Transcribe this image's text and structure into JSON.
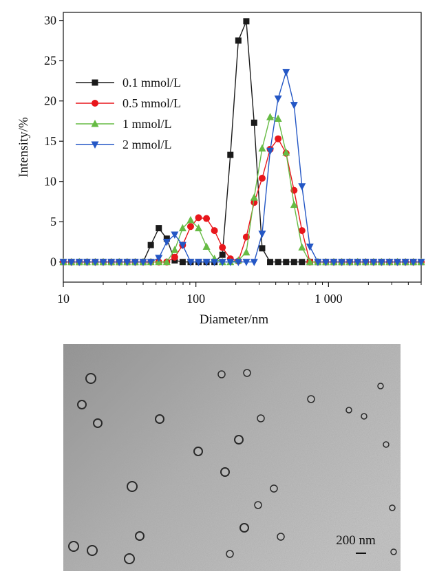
{
  "chart_data": {
    "type": "line",
    "xscale": "log",
    "xlim": [
      10,
      5000
    ],
    "ylim": [
      -2.5,
      31
    ],
    "xlabel": "Diameter/nm",
    "ylabel": "Intensity/%",
    "xticks": [
      10,
      100,
      1000
    ],
    "xtick_labels": [
      "10",
      "100",
      "1 000"
    ],
    "yticks": [
      0,
      5,
      10,
      15,
      20,
      25,
      30
    ],
    "ytick_labels": [
      "0",
      "5",
      "10",
      "15",
      "20",
      "25",
      "30"
    ],
    "legend_position": "upper-left",
    "series": [
      {
        "name": "0.1 mmol/L",
        "color": "#1a1a1a",
        "marker": "square",
        "x": [
          10,
          11.5,
          13.2,
          15.1,
          17.4,
          20,
          23,
          26.4,
          30.3,
          34.8,
          40,
          45.7,
          52.5,
          60.3,
          69.2,
          79.4,
          91.2,
          104.7,
          120.2,
          138,
          158.5,
          182,
          209,
          240,
          275,
          316,
          363,
          417,
          479,
          550,
          631,
          724,
          832,
          955,
          1096,
          1259,
          1445,
          1660,
          1905,
          2188,
          2512,
          2884,
          3311,
          3802,
          4365,
          5000
        ],
        "y": [
          0,
          0,
          0,
          0,
          0,
          0,
          0,
          0,
          0,
          0,
          0,
          2.1,
          4.2,
          2.9,
          0.2,
          0,
          0,
          0,
          0,
          0,
          0.9,
          13.3,
          27.5,
          29.9,
          17.3,
          1.7,
          0,
          0,
          0,
          0,
          0,
          0,
          0,
          0,
          0,
          0,
          0,
          0,
          0,
          0,
          0,
          0,
          0,
          0,
          0,
          0
        ]
      },
      {
        "name": "0.5 mmol/L",
        "color": "#e8161b",
        "marker": "circle",
        "x": [
          10,
          11.5,
          13.2,
          15.1,
          17.4,
          20,
          23,
          26.4,
          30.3,
          34.8,
          40,
          45.7,
          52.5,
          60.3,
          69.2,
          79.4,
          91.2,
          104.7,
          120.2,
          138,
          158.5,
          182,
          209,
          240,
          275,
          316,
          363,
          417,
          479,
          550,
          631,
          724,
          832,
          955,
          1096,
          1259,
          1445,
          1660,
          1905,
          2188,
          2512,
          2884,
          3311,
          3802,
          4365,
          5000
        ],
        "y": [
          0,
          0,
          0,
          0,
          0,
          0,
          0,
          0,
          0,
          0,
          0,
          0,
          0,
          0,
          0.6,
          2.1,
          4.4,
          5.5,
          5.4,
          3.9,
          1.8,
          0.4,
          0.1,
          3.1,
          7.4,
          10.4,
          14,
          15.3,
          13.5,
          8.9,
          3.9,
          0,
          0,
          0,
          0,
          0,
          0,
          0,
          0,
          0,
          0,
          0,
          0,
          0,
          0,
          0
        ]
      },
      {
        "name": "1 mmol/L",
        "color": "#66bb44",
        "marker": "triangle-up",
        "x": [
          10,
          11.5,
          13.2,
          15.1,
          17.4,
          20,
          23,
          26.4,
          30.3,
          34.8,
          40,
          45.7,
          52.5,
          60.3,
          69.2,
          79.4,
          91.2,
          104.7,
          120.2,
          138,
          158.5,
          182,
          209,
          240,
          275,
          316,
          363,
          417,
          479,
          550,
          631,
          724,
          832,
          955,
          1096,
          1259,
          1445,
          1660,
          1905,
          2188,
          2512,
          2884,
          3311,
          3802,
          4365,
          5000
        ],
        "y": [
          0,
          0,
          0,
          0,
          0,
          0,
          0,
          0,
          0,
          0,
          0,
          0,
          0,
          0,
          1.5,
          4.2,
          5.2,
          4.2,
          1.9,
          0.4,
          0,
          0,
          0.2,
          1.2,
          8,
          14.1,
          18,
          17.8,
          13.6,
          7.1,
          1.8,
          0,
          0,
          0,
          0,
          0,
          0,
          0,
          0,
          0,
          0,
          0,
          0,
          0,
          0,
          0
        ]
      },
      {
        "name": "2 mmol/L",
        "color": "#2457c5",
        "marker": "triangle-down",
        "x": [
          10,
          11.5,
          13.2,
          15.1,
          17.4,
          20,
          23,
          26.4,
          30.3,
          34.8,
          40,
          45.7,
          52.5,
          60.3,
          69.2,
          79.4,
          91.2,
          104.7,
          120.2,
          138,
          158.5,
          182,
          209,
          240,
          275,
          316,
          363,
          417,
          479,
          550,
          631,
          724,
          832,
          955,
          1096,
          1259,
          1445,
          1660,
          1905,
          2188,
          2512,
          2884,
          3311,
          3802,
          4365,
          5000
        ],
        "y": [
          0,
          0,
          0,
          0,
          0,
          0,
          0,
          0,
          0,
          0,
          0,
          0,
          0.5,
          2.5,
          3.4,
          2.1,
          0,
          0,
          0,
          0,
          0,
          0,
          0,
          0,
          0,
          3.5,
          13.8,
          20.3,
          23.6,
          19.5,
          9.4,
          1.9,
          0,
          0,
          0,
          0,
          0,
          0,
          0,
          0,
          0,
          0,
          0,
          0,
          0,
          0
        ]
      }
    ]
  },
  "tem": {
    "scale_bar_label": "200 nm"
  }
}
